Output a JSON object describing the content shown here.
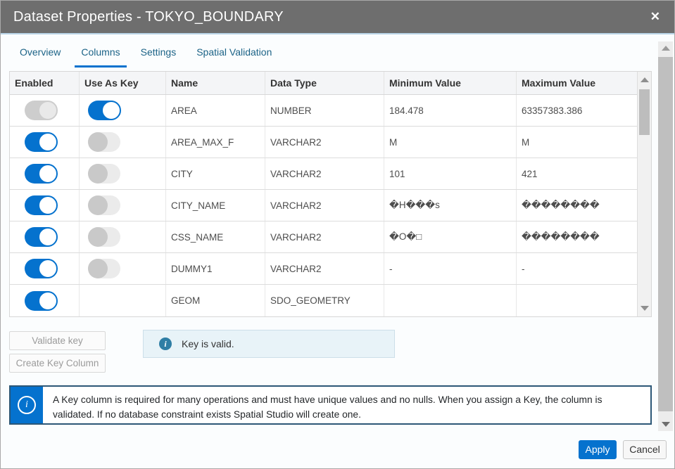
{
  "dialog": {
    "title": "Dataset Properties - TOKYO_BOUNDARY",
    "close_icon": "✕"
  },
  "tabs": [
    {
      "label": "Overview",
      "active": false
    },
    {
      "label": "Columns",
      "active": true
    },
    {
      "label": "Settings",
      "active": false
    },
    {
      "label": "Spatial Validation",
      "active": false
    }
  ],
  "table": {
    "columns": [
      "Enabled",
      "Use As Key",
      "Name",
      "Data Type",
      "Minimum Value",
      "Maximum Value"
    ],
    "rows": [
      {
        "enabled": "disabled-on",
        "use_as_key": "on",
        "name": "AREA",
        "data_type": "NUMBER",
        "min": "184.478",
        "max": "63357383.386"
      },
      {
        "enabled": "on",
        "use_as_key": "off",
        "name": "AREA_MAX_F",
        "data_type": "VARCHAR2",
        "min": "M",
        "max": "M"
      },
      {
        "enabled": "on",
        "use_as_key": "off",
        "name": "CITY",
        "data_type": "VARCHAR2",
        "min": "101",
        "max": "421"
      },
      {
        "enabled": "on",
        "use_as_key": "off",
        "name": "CITY_NAME",
        "data_type": "VARCHAR2",
        "min": "�H���s",
        "max": "��������"
      },
      {
        "enabled": "on",
        "use_as_key": "off",
        "name": "CSS_NAME",
        "data_type": "VARCHAR2",
        "min": "�O�□",
        "max": "��������"
      },
      {
        "enabled": "on",
        "use_as_key": "off",
        "name": "DUMMY1",
        "data_type": "VARCHAR2",
        "min": "-",
        "max": "-"
      },
      {
        "enabled": "on",
        "use_as_key": "none",
        "name": "GEOM",
        "data_type": "SDO_GEOMETRY",
        "min": "",
        "max": ""
      }
    ]
  },
  "key_actions": {
    "validate_button": "Validate key",
    "create_button": "Create Key Column",
    "status_icon": "i",
    "status_message": "Key is valid."
  },
  "callout": {
    "icon": "i",
    "text": "A Key column is required for many operations and must have unique values and no nulls. When you assign a Key, the column is validated. If no database constraint exists Spatial Studio will create one."
  },
  "footer": {
    "apply_label": "Apply",
    "cancel_label": "Cancel"
  },
  "colors": {
    "accent": "#0572ce",
    "titlebar_bg": "#6e6e6e",
    "tab_text": "#1c6387",
    "status_box_bg": "#e8f3f8",
    "toggle_off_bg": "#ebebeb",
    "toggle_disabled_bg": "#cdcdcd"
  }
}
